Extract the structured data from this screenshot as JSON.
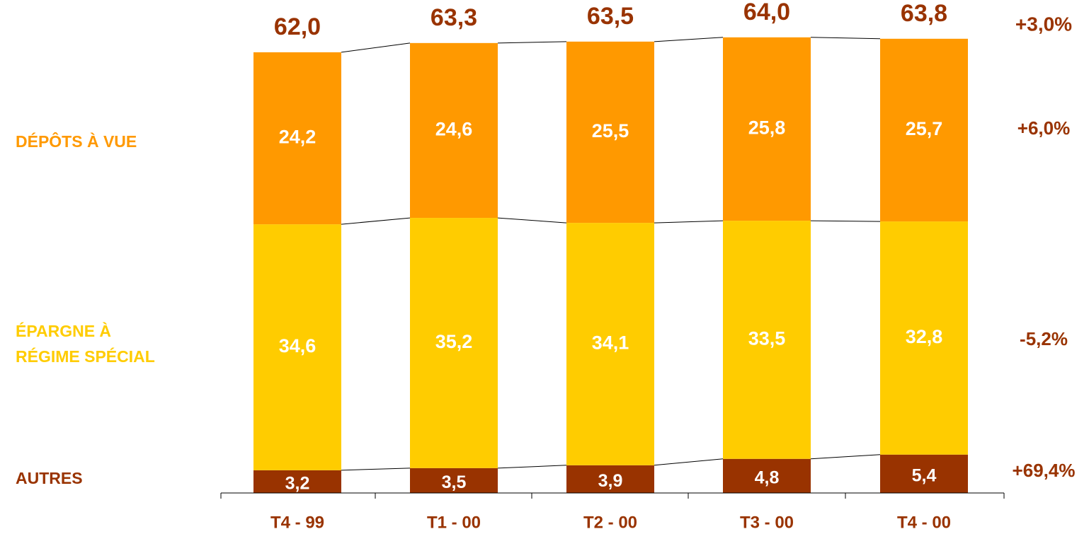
{
  "chart_data": {
    "type": "bar",
    "stacked": true,
    "categories": [
      "T4 - 99",
      "T1 - 00",
      "T2 - 00",
      "T3 - 00",
      "T4 - 00"
    ],
    "series": [
      {
        "name": "AUTRES",
        "values": [
          3.2,
          3.5,
          3.9,
          4.8,
          5.4
        ],
        "labels": [
          "3,2",
          "3,5",
          "3,9",
          "4,8",
          "5,4"
        ],
        "color": "#993300",
        "change": "+69,4%"
      },
      {
        "name": "ÉPARGNE À\nRÉGIME SPÉCIAL",
        "values": [
          34.6,
          35.2,
          34.1,
          33.5,
          32.8
        ],
        "labels": [
          "34,6",
          "35,2",
          "34,1",
          "33,5",
          "32,8"
        ],
        "color": "#FFCC00",
        "change": "-5,2%"
      },
      {
        "name": "DÉPÔTS À VUE",
        "values": [
          24.2,
          24.6,
          25.5,
          25.8,
          25.7
        ],
        "labels": [
          "24,2",
          "24,6",
          "25,5",
          "25,8",
          "25,7"
        ],
        "color": "#FF9900",
        "change": "+6,0%"
      }
    ],
    "totals": [
      62.0,
      63.3,
      63.5,
      64.0,
      63.8
    ],
    "total_labels": [
      "62,0",
      "63,3",
      "63,5",
      "64,0",
      "63,8"
    ],
    "total_change": "+3,0%",
    "label_colors": {
      "total": "#993300",
      "inner": "#ffffff",
      "change": "#993300",
      "axis": "#993300"
    },
    "connector_lines": true,
    "grid": false,
    "legend": "left"
  }
}
